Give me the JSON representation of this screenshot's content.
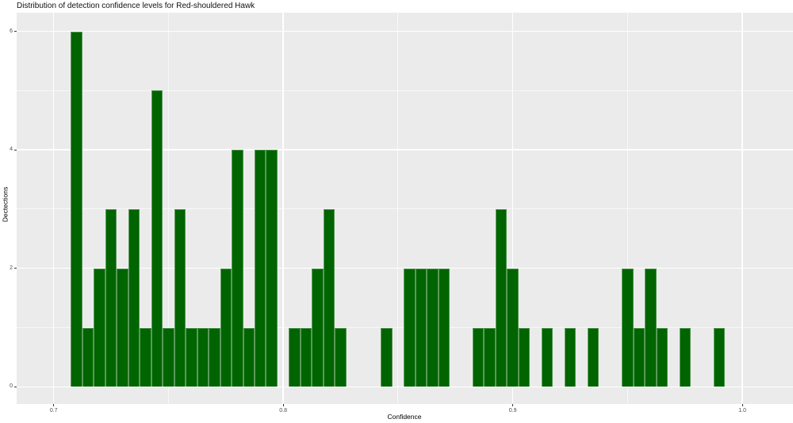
{
  "title": "Distribution of detection confidence levels for Red-shouldered Hawk",
  "chart_data": {
    "type": "bar",
    "subtype": "histogram",
    "title": "Distribution of detection confidence levels for Red-shouldered Hawk",
    "xlabel": "Confidence",
    "ylabel": "Dectections",
    "bin_width": 0.005,
    "bin_centers": [
      0.71,
      0.715,
      0.72,
      0.725,
      0.73,
      0.735,
      0.74,
      0.745,
      0.75,
      0.755,
      0.76,
      0.765,
      0.77,
      0.775,
      0.78,
      0.785,
      0.79,
      0.795,
      0.8,
      0.805,
      0.81,
      0.815,
      0.82,
      0.825,
      0.83,
      0.835,
      0.84,
      0.845,
      0.85,
      0.855,
      0.86,
      0.865,
      0.87,
      0.875,
      0.88,
      0.885,
      0.89,
      0.895,
      0.9,
      0.905,
      0.91,
      0.915,
      0.92,
      0.925,
      0.93,
      0.935,
      0.94,
      0.945,
      0.95,
      0.955,
      0.96,
      0.965,
      0.97,
      0.975,
      0.98,
      0.985,
      0.99
    ],
    "counts": [
      6,
      1,
      2,
      3,
      2,
      3,
      1,
      5,
      1,
      3,
      1,
      1,
      1,
      2,
      4,
      1,
      4,
      4,
      0,
      1,
      1,
      2,
      3,
      1,
      0,
      0,
      0,
      1,
      0,
      2,
      2,
      2,
      2,
      0,
      0,
      1,
      1,
      3,
      2,
      1,
      0,
      1,
      0,
      1,
      0,
      1,
      0,
      0,
      2,
      1,
      2,
      1,
      0,
      1,
      0,
      0,
      1
    ],
    "x_ticks": [
      0.7,
      0.8,
      0.9,
      1.0
    ],
    "x_tick_labels": [
      "0.7",
      "0.8",
      "0.9",
      "1.0"
    ],
    "x_minor_ticks": [
      0.75,
      0.85,
      0.95
    ],
    "y_ticks": [
      0,
      2,
      4,
      6
    ],
    "y_tick_labels": [
      "0",
      "2",
      "4",
      "6"
    ],
    "y_minor_ticks": [
      1,
      3,
      5
    ],
    "xlim": [
      0.684,
      1.022
    ],
    "ylim": [
      -0.3,
      6.3
    ],
    "grid": "on",
    "legend_position": "none",
    "colors": {
      "bar_fill": "#006400",
      "bar_edge": "rgba(255,255,255,0.35)",
      "panel_background": "#EBEBEB",
      "gridline": "#FFFFFF",
      "tick_mark": "#333333",
      "tick_label": "#4D4D4D",
      "title_text": "#101010",
      "axis_title_text": "#000000",
      "figure_background": "#FFFFFF"
    }
  }
}
